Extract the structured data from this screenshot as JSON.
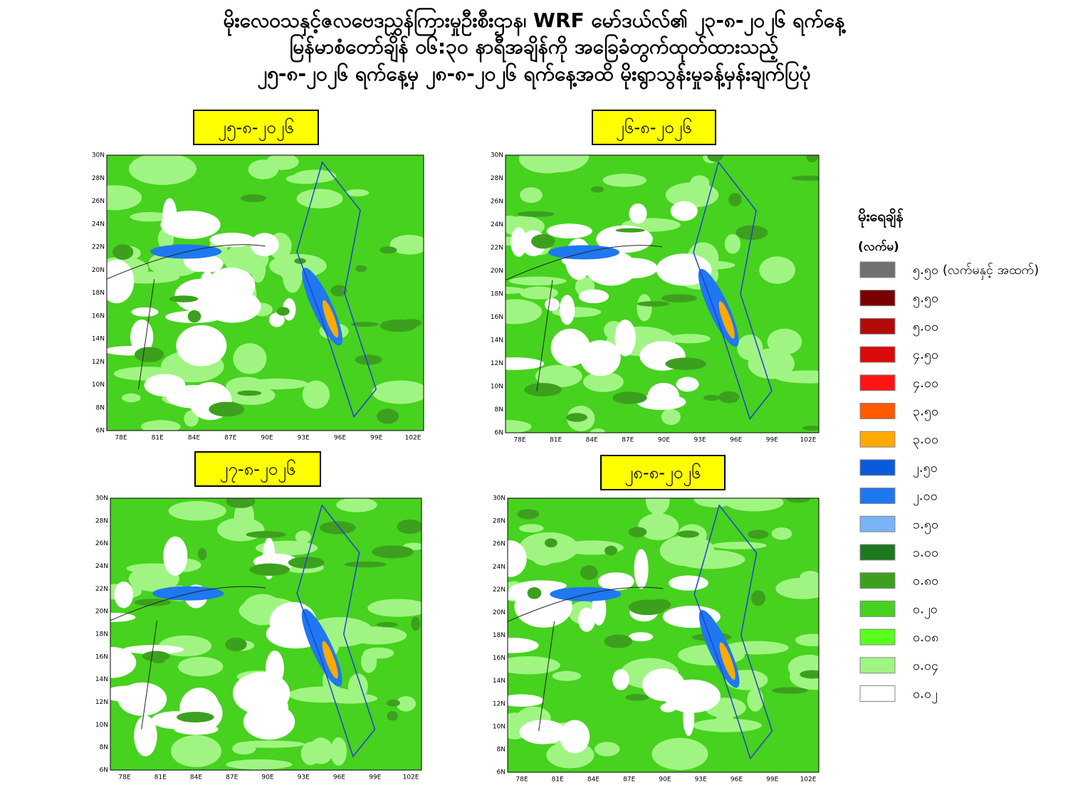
{
  "header": {
    "lines": [
      "မိုးလေဝသနှင့်ဇလဗေဒညွှန်ကြားမှုဦးစီးဌာန၊ WRF မော်ဒယ်လ်၏ ၂၃-၈-၂၀၂၆ ရက်နေ့",
      "မြန်မာစံတော်ချိန် ၀၆:၃၀ နာရီအချိန်ကို အခြေခံတွက်ထုတ်ထားသည့်",
      "၂၅-၈-၂၀၂၆ ရက်နေ့မှ ၂၈-၈-၂၀၂၆ ရက်နေ့အထိ မိုးရွာသွန်းမှုခန့်မှန်းချက်ပြပုံ"
    ]
  },
  "panels": [
    {
      "date": "၂၅-၈-၂၀၂၆"
    },
    {
      "date": "၂၆-၈-၂၀၂၆"
    },
    {
      "date": "၂၇-၈-၂၀၂၆"
    },
    {
      "date": "၂၈-၈-၂၀၂၆"
    }
  ],
  "axes": {
    "lat": [
      "30N",
      "28N",
      "26N",
      "24N",
      "22N",
      "20N",
      "18N",
      "16N",
      "14N",
      "12N",
      "10N",
      "8N",
      "6N"
    ],
    "lon": [
      "78E",
      "81E",
      "84E",
      "87E",
      "90E",
      "93E",
      "96E",
      "99E",
      "102E"
    ]
  },
  "legend": {
    "title": "မိုးရေချိန်",
    "unit": "(လက်မ)",
    "items": [
      {
        "label": "၅.၅၀ (လက်မနှင့် အထက်)",
        "color": "#707070"
      },
      {
        "label": "၅.၅၀",
        "color": "#780000"
      },
      {
        "label": "၅.၀၀",
        "color": "#b40a0a"
      },
      {
        "label": "၄.၅၀",
        "color": "#dc0a0a"
      },
      {
        "label": "၄.၀၀",
        "color": "#ff1414"
      },
      {
        "label": "၃.၅၀",
        "color": "#ff5a00"
      },
      {
        "label": "၃.၀၀",
        "color": "#ffaa00"
      },
      {
        "label": "၂.၅၀",
        "color": "#0a5adc"
      },
      {
        "label": "၂.၀၀",
        "color": "#1e78f0"
      },
      {
        "label": "၁.၅၀",
        "color": "#78b4f5"
      },
      {
        "label": "၁.၀၀",
        "color": "#1e781e"
      },
      {
        "label": "၀.၈၀",
        "color": "#3ca01e"
      },
      {
        "label": "၀.၂၀",
        "color": "#46d21e"
      },
      {
        "label": "၀.၀၈",
        "color": "#5aff1e"
      },
      {
        "label": "၀.၀၄",
        "color": "#a0f582"
      },
      {
        "label": "၀.၀၂",
        "color": "#ffffff"
      }
    ]
  }
}
